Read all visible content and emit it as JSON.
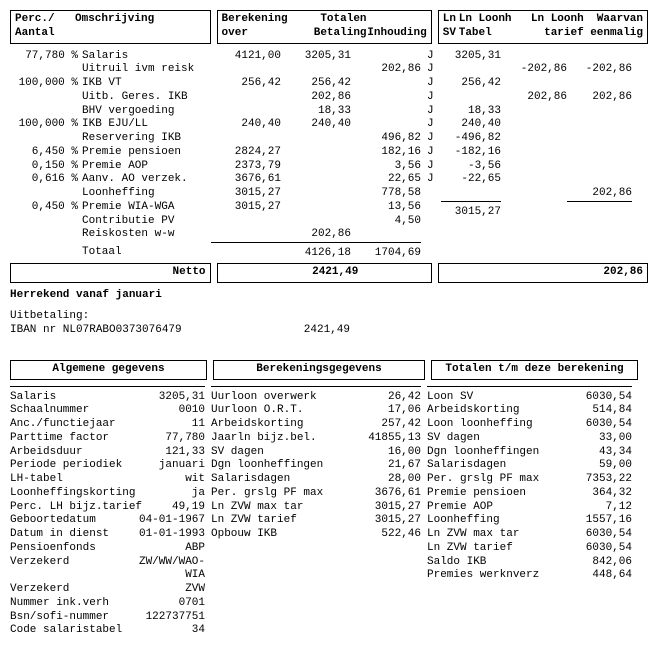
{
  "headers": {
    "box1": {
      "c1": "Perc./\nAantal",
      "c2": "Omschrijving"
    },
    "box2": {
      "c1": "Berekening\nover",
      "c2": "Totalen\nBetaling",
      "c3": "\nInhouding"
    },
    "box3": {
      "c1": "Ln\nSV",
      "c2": "Ln Loonh\nTabel",
      "c3": "Ln Loonh\ntarief",
      "c4": "Waarvan\neenmalig"
    }
  },
  "lines": [
    {
      "p": "77,780 %",
      "d": "Salaris",
      "a": "4121,00",
      "b": "3205,31",
      "c": "",
      "s": "J",
      "t": "3205,31",
      "u": "",
      "v": ""
    },
    {
      "p": "",
      "d": "Uitruil ivm reisk",
      "a": "",
      "b": "",
      "c": "202,86",
      "s": "J",
      "t": "",
      "u": "-202,86",
      "v": "-202,86"
    },
    {
      "p": "100,000 %",
      "d": "IKB VT",
      "a": "256,42",
      "b": "256,42",
      "c": "",
      "s": "J",
      "t": "256,42",
      "u": "",
      "v": ""
    },
    {
      "p": "",
      "d": "Uitb. Geres. IKB",
      "a": "",
      "b": "202,86",
      "c": "",
      "s": "J",
      "t": "",
      "u": "202,86",
      "v": "202,86"
    },
    {
      "p": "",
      "d": "BHV vergoeding",
      "a": "",
      "b": "18,33",
      "c": "",
      "s": "J",
      "t": "18,33",
      "u": "",
      "v": ""
    },
    {
      "p": "100,000 %",
      "d": "IKB EJU/LL",
      "a": "240,40",
      "b": "240,40",
      "c": "",
      "s": "J",
      "t": "240,40",
      "u": "",
      "v": ""
    },
    {
      "p": "",
      "d": "Reservering IKB",
      "a": "",
      "b": "",
      "c": "496,82",
      "s": "J",
      "t": "-496,82",
      "u": "",
      "v": ""
    },
    {
      "p": "6,450 %",
      "d": "Premie pensioen",
      "a": "2824,27",
      "b": "",
      "c": "182,16",
      "s": "J",
      "t": "-182,16",
      "u": "",
      "v": ""
    },
    {
      "p": "0,150 %",
      "d": "Premie AOP",
      "a": "2373,79",
      "b": "",
      "c": "3,56",
      "s": "J",
      "t": "-3,56",
      "u": "",
      "v": ""
    },
    {
      "p": "0,616 %",
      "d": "Aanv. AO verzek.",
      "a": "3676,61",
      "b": "",
      "c": "22,65",
      "s": "J",
      "t": "-22,65",
      "u": "",
      "v": ""
    },
    {
      "p": "",
      "d": "Loonheffing",
      "a": "3015,27",
      "b": "",
      "c": "778,58",
      "s": "",
      "t": "",
      "u": "",
      "v": ""
    },
    {
      "p": "0,450 %",
      "d": "Premie WIA-WGA",
      "a": "3015,27",
      "b": "",
      "c": "13,56",
      "s": "",
      "t": "",
      "u": "",
      "v": ""
    },
    {
      "p": "",
      "d": "Contributie PV",
      "a": "",
      "b": "",
      "c": "4,50",
      "s": "",
      "t": "",
      "u": "",
      "v": ""
    },
    {
      "p": "",
      "d": "Reiskosten w-w",
      "a": "",
      "b": "202,86",
      "c": "",
      "s": "",
      "t": "",
      "u": "",
      "v": "202,86"
    }
  ],
  "totals": {
    "label": "Totaal",
    "bet": "4126,18",
    "inh": "1704,69",
    "tab": "3015,27"
  },
  "netto": {
    "label": "Netto",
    "amount": "2421,49",
    "right": "202,86"
  },
  "recalc": "Herrekend vanaf januari",
  "payout_label": "Uitbetaling:",
  "iban": "IBAN nr NL07RABO0373076479",
  "payout_amount": "2421,49",
  "bottom_headers": {
    "b1": "Algemene gegevens",
    "b2": "Berekeningsgegevens",
    "b3": "Totalen t/m deze berekening"
  },
  "alg": [
    [
      "Salaris",
      "3205,31"
    ],
    [
      "Schaalnummer",
      "0010"
    ],
    [
      "Anc./functiejaar",
      "11"
    ],
    [
      "Parttime factor",
      "77,780"
    ],
    [
      "Arbeidsduur",
      "121,33"
    ],
    [
      "Periode periodiek",
      "januari"
    ],
    [
      "LH-tabel",
      "wit"
    ],
    [
      "Loonheffingskorting",
      "ja"
    ],
    [
      "Perc. LH bijz.tarief",
      "49,19"
    ],
    [
      "Geboortedatum",
      "04-01-1967"
    ],
    [
      "Datum in dienst",
      "01-01-1993"
    ],
    [
      "Pensioenfonds",
      "ABP"
    ],
    [
      "Verzekerd",
      "ZW/WW/WAO-WIA"
    ],
    [
      "Verzekerd",
      "ZVW"
    ],
    [
      "Nummer ink.verh",
      "0701"
    ],
    [
      "Bsn/sofi-nummer",
      "122737751"
    ],
    [
      "Code salaristabel",
      "34"
    ]
  ],
  "ber": [
    [
      "Uurloon overwerk",
      "26,42"
    ],
    [
      "Uurloon O.R.T.",
      "17,06"
    ],
    [
      "Arbeidskorting",
      "257,42"
    ],
    [
      "Jaarln bijz.bel.",
      "41855,13"
    ],
    [
      "SV dagen",
      "16,00"
    ],
    [
      "Dgn loonheffingen",
      "21,67"
    ],
    [
      "Salarisdagen",
      "28,00"
    ],
    [
      "Per. grslg PF max",
      "3676,61"
    ],
    [
      "Ln ZVW max tar",
      "3015,27"
    ],
    [
      "Ln ZVW tarief",
      "3015,27"
    ],
    [
      "Opbouw IKB",
      "522,46"
    ]
  ],
  "tot": [
    [
      "Loon SV",
      "6030,54"
    ],
    [
      "Arbeidskorting",
      "514,84"
    ],
    [
      "Loon loonheffing",
      "6030,54"
    ],
    [
      "SV dagen",
      "33,00"
    ],
    [
      "Dgn loonheffingen",
      "43,34"
    ],
    [
      "Salarisdagen",
      "59,00"
    ],
    [
      "Per. grslg PF max",
      "7353,22"
    ],
    [
      "Premie pensioen",
      "364,32"
    ],
    [
      "Premie AOP",
      "7,12"
    ],
    [
      "Loonheffing",
      "1557,16"
    ],
    [
      "Ln ZVW max tar",
      "6030,54"
    ],
    [
      "Ln ZVW tarief",
      "6030,54"
    ],
    [
      "Saldo IKB",
      "842,06"
    ],
    [
      "Premies werknverz",
      "448,64"
    ]
  ]
}
